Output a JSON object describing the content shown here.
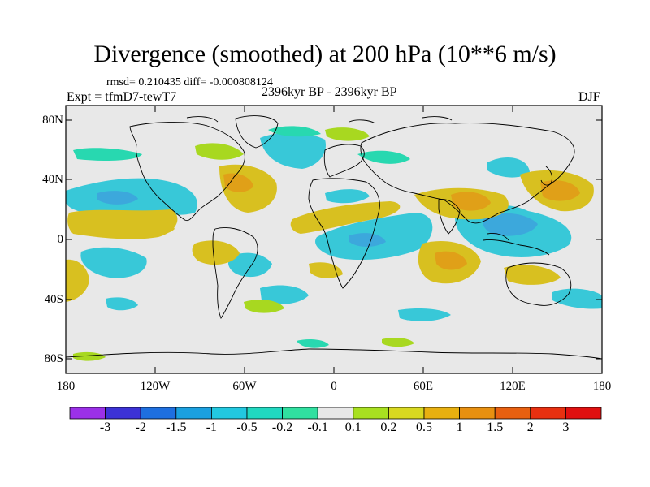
{
  "map": {
    "title": "Divergence (smoothed) at 200 hPa (10**6 m/s)",
    "stats": "rmsd= 0.210435 diff= -0.000808124",
    "experiment": "Expt = tfmD7-tewT7",
    "period": "2396kyr BP - 2396kyr BP",
    "season": "DJF",
    "y_ticks": [
      "80N",
      "40N",
      "0",
      "40S",
      "80S"
    ],
    "x_ticks": [
      "180",
      "120W",
      "60W",
      "0",
      "60E",
      "120E",
      "180"
    ]
  },
  "colorbar": {
    "labels": [
      "-3",
      "-2",
      "-1.5",
      "-1",
      "-0.5",
      "-0.2",
      "-0.1",
      "0.1",
      "0.2",
      "0.5",
      "1",
      "1.5",
      "2",
      "3"
    ],
    "colors": [
      "#9b30e8",
      "#3c32d6",
      "#1e6fe0",
      "#1aa0e0",
      "#22c8e0",
      "#20d8c0",
      "#30e0a0",
      "#e8e8e8",
      "#a8e020",
      "#d8d820",
      "#e8b010",
      "#e89010",
      "#e86010",
      "#e83010",
      "#e01010"
    ]
  },
  "field_colors": {
    "neg_strong": "#3ca8dc",
    "neg": "#38c8d8",
    "neg_weak": "#28d8b0",
    "pos_weak": "#a8d820",
    "pos": "#d8c020",
    "pos_strong": "#e0a018",
    "background": "#e8e8e8"
  }
}
